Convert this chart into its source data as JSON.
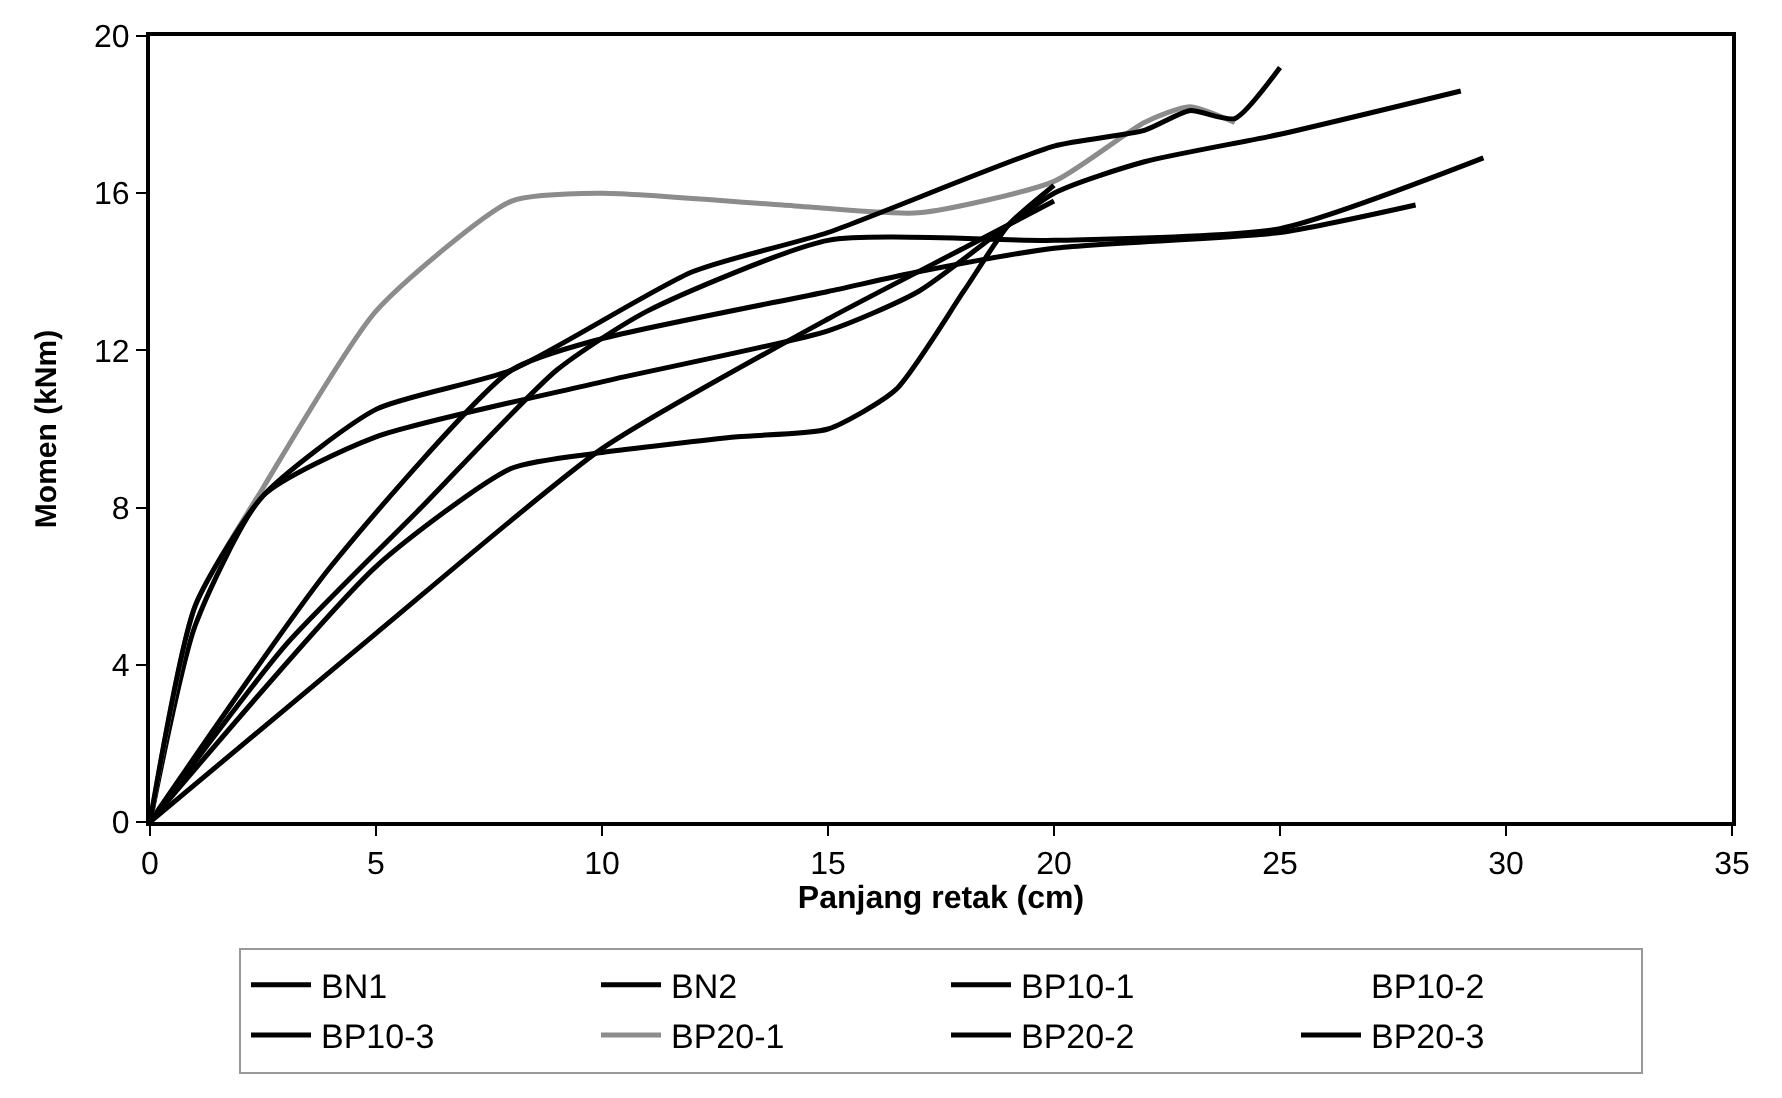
{
  "chart_data": {
    "type": "line",
    "xlabel": "Panjang retak (cm)",
    "ylabel": "Momen (kNm)",
    "xlim": [
      0,
      35
    ],
    "xticks": [
      0,
      5,
      10,
      15,
      20,
      25,
      30,
      35
    ],
    "ylim": [
      0,
      20
    ],
    "yticks": [
      0,
      4,
      8,
      12,
      16,
      20
    ],
    "legend": "bottom",
    "marker": "none",
    "line_style": "solid",
    "series": [
      {
        "name": "BN1",
        "color": "#000000",
        "x": [
          0,
          5,
          10,
          15,
          18,
          20
        ],
        "values": [
          0,
          4.8,
          9.5,
          12.8,
          14.6,
          15.8
        ]
      },
      {
        "name": "BN2",
        "color": "#000000",
        "x": [
          0,
          1,
          2.5,
          5,
          10,
          15,
          17,
          20,
          22,
          25,
          29
        ],
        "values": [
          0,
          5,
          8.3,
          9.8,
          11.2,
          12.5,
          13.5,
          16,
          16.8,
          17.5,
          18.6
        ]
      },
      {
        "name": "BP10-1",
        "color": "#000000",
        "x": [
          0,
          4,
          8,
          10,
          15,
          17,
          20,
          25,
          28
        ],
        "values": [
          0,
          6.5,
          11.5,
          12.3,
          13.5,
          14,
          14.6,
          15,
          15.7
        ]
      },
      {
        "name": "BP10-2"
      },
      {
        "name": "BP10-3",
        "color": "#000000",
        "x": [
          0,
          3,
          6,
          9,
          11,
          15,
          20,
          25,
          29.5
        ],
        "values": [
          0,
          4.5,
          8,
          11.5,
          13,
          14.8,
          14.8,
          15.1,
          16.9
        ]
      },
      {
        "name": "BP20-1",
        "color": "#8c8c8c",
        "x": [
          0,
          1,
          2.5,
          5,
          8,
          10,
          14,
          17,
          20,
          22,
          23,
          24
        ],
        "values": [
          0,
          5.5,
          8.5,
          13,
          15.8,
          16,
          15.7,
          15.5,
          16.3,
          17.8,
          18.2,
          17.8
        ]
      },
      {
        "name": "BP20-2",
        "color": "#000000",
        "x": [
          0,
          1,
          2.5,
          5,
          8,
          12,
          15,
          20,
          22,
          23,
          24,
          25
        ],
        "values": [
          0,
          5.5,
          8.3,
          10.5,
          11.5,
          14,
          15,
          17.2,
          17.6,
          18.1,
          17.9,
          19.2
        ]
      },
      {
        "name": "BP20-3",
        "color": "#000000",
        "x": [
          0,
          5,
          8,
          10,
          13,
          15,
          16.5,
          18,
          19,
          20
        ],
        "values": [
          0,
          6.5,
          9,
          9.4,
          9.8,
          10,
          11,
          13.5,
          15.2,
          16.2
        ]
      }
    ]
  }
}
